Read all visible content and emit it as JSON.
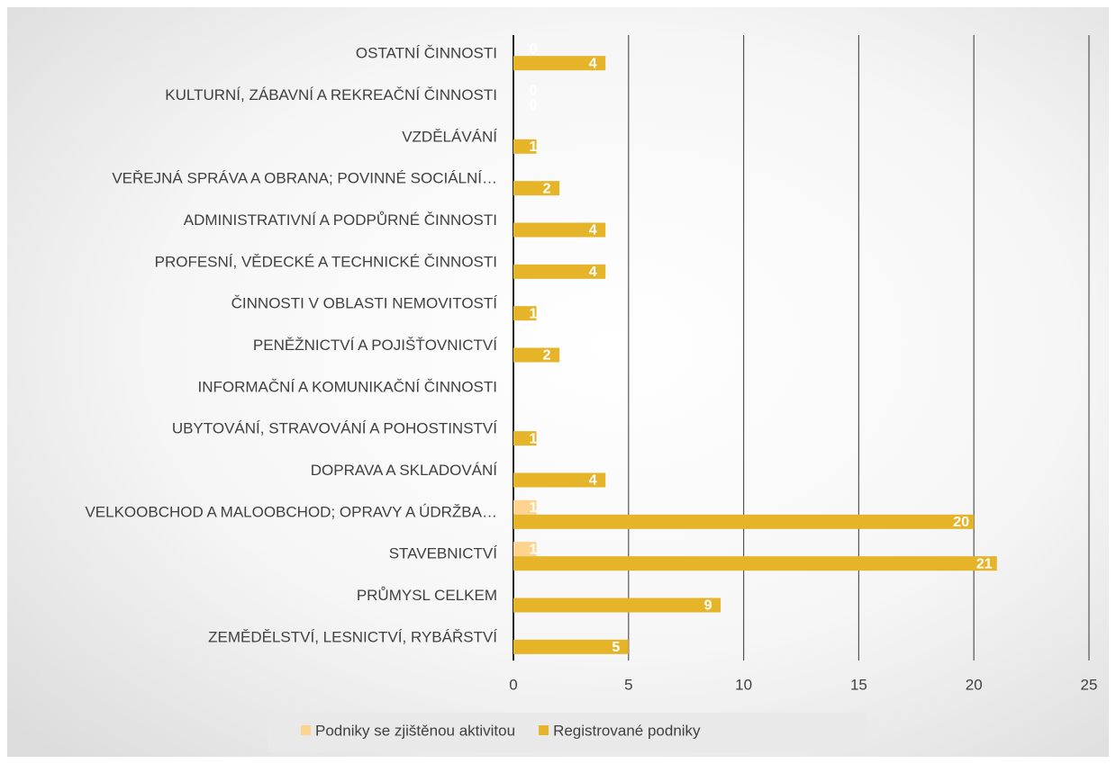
{
  "chart_data": {
    "type": "hbar",
    "categories": [
      "OSTATNÍ ČINNOSTI",
      "KULTURNÍ, ZÁBAVNÍ A REKREAČNÍ ČINNOSTI",
      "VZDĚLÁVÁNÍ",
      "VEŘEJNÁ SPRÁVA A OBRANA; POVINNÉ SOCIÁLNÍ…",
      "ADMINISTRATIVNÍ A PODPŮRNÉ ČINNOSTI",
      "PROFESNÍ, VĚDECKÉ A TECHNICKÉ ČINNOSTI",
      "ČINNOSTI V OBLASTI NEMOVITOSTÍ",
      "PENĚŽNICTVÍ A POJIŠŤOVNICTVÍ",
      "INFORMAČNÍ A KOMUNIKAČNÍ ČINNOSTI",
      "UBYTOVÁNÍ, STRAVOVÁNÍ A POHOSTINSTVÍ",
      "DOPRAVA A SKLADOVÁNÍ",
      "VELKOOBCHOD A MALOOBCHOD; OPRAVY A ÚDRŽBA…",
      "STAVEBNICTVÍ",
      "PRŮMYSL CELKEM",
      "ZEMĚDĚLSTVÍ, LESNICTVÍ, RYBÁŘSTVÍ"
    ],
    "series": [
      {
        "name": "Podniky se zjištěnou aktivitou",
        "color": "#fdd38d",
        "values": [
          0,
          0,
          0,
          0,
          0,
          0,
          0,
          0,
          0,
          0,
          0,
          1,
          1,
          0,
          0
        ],
        "value_labels": [
          "0",
          "0",
          null,
          null,
          null,
          null,
          null,
          null,
          null,
          null,
          null,
          "1",
          "1",
          null,
          null
        ]
      },
      {
        "name": "Registrované podniky",
        "color": "#e6b429",
        "values": [
          4,
          0,
          1,
          2,
          4,
          4,
          1,
          2,
          0,
          1,
          4,
          20,
          21,
          9,
          5
        ],
        "value_labels": [
          "4",
          "0",
          "1",
          "2",
          "4",
          "4",
          "1",
          "2",
          null,
          "1",
          "4",
          "20",
          "21",
          "9",
          "5"
        ]
      }
    ],
    "xlim": [
      0,
      25
    ],
    "xticks": [
      0,
      5,
      10,
      15,
      20,
      25
    ],
    "grid": true,
    "legend": "bottom"
  }
}
